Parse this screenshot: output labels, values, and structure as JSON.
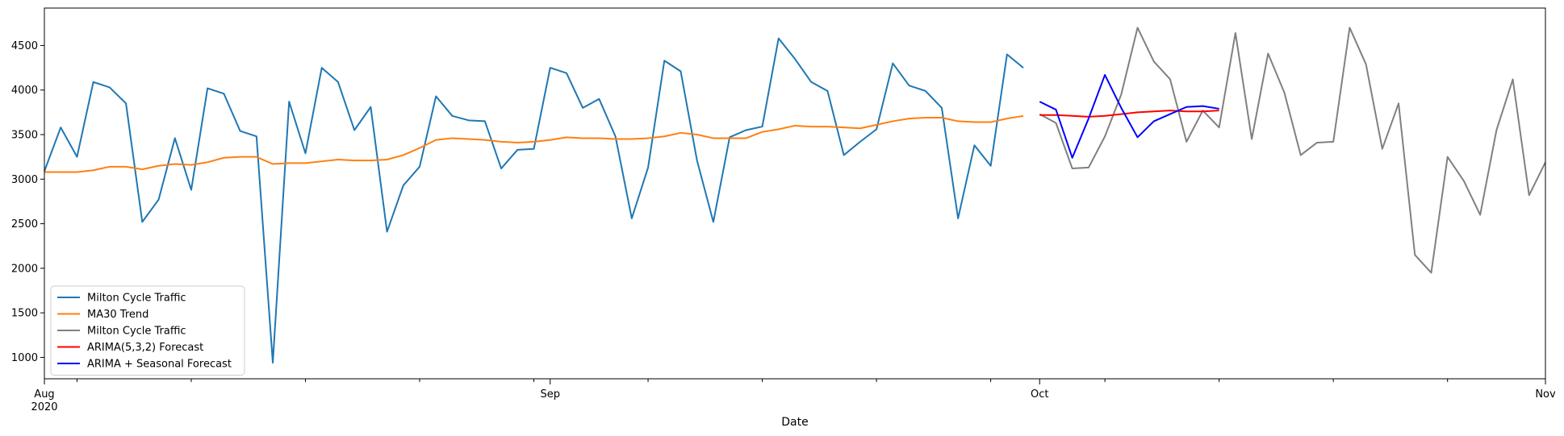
{
  "chart_data": {
    "type": "line",
    "title": "",
    "xlabel": "Date",
    "ylabel": "",
    "xlim": [
      "2020-08-01",
      "2020-11-01"
    ],
    "ylim": [
      760,
      4920
    ],
    "grid": false,
    "legend_position": "lower-left",
    "y_ticks": [
      1000,
      1500,
      2000,
      2500,
      3000,
      3500,
      4000,
      4500
    ],
    "x_major_ticks": [
      {
        "date": "2020-08-01",
        "label": "Aug",
        "sublabel": "2020"
      },
      {
        "date": "2020-09-01",
        "label": "Sep",
        "sublabel": ""
      },
      {
        "date": "2020-10-01",
        "label": "Oct",
        "sublabel": ""
      },
      {
        "date": "2020-11-01",
        "label": "Nov",
        "sublabel": ""
      }
    ],
    "x_minor_ticks": [
      "2020-08-03",
      "2020-08-10",
      "2020-08-17",
      "2020-08-24",
      "2020-08-31",
      "2020-09-07",
      "2020-09-14",
      "2020-09-21",
      "2020-09-28",
      "2020-10-05",
      "2020-10-12",
      "2020-10-19",
      "2020-10-26"
    ],
    "series": [
      {
        "name": "Milton Cycle Traffic",
        "color": "#1f77b4",
        "start": "2020-08-01",
        "values": [
          3090,
          3580,
          3250,
          4090,
          4030,
          3850,
          2520,
          2770,
          3460,
          2880,
          4020,
          3960,
          3540,
          3480,
          940,
          3870,
          3290,
          4250,
          4090,
          3550,
          3810,
          2410,
          2930,
          3140,
          3930,
          3710,
          3660,
          3650,
          3120,
          3330,
          3340,
          4250,
          4190,
          3800,
          3900,
          3480,
          2560,
          3130,
          4330,
          4210,
          3210,
          2520,
          3470,
          3550,
          3590,
          4580,
          4350,
          4090,
          3990,
          3270,
          3420,
          3560,
          4300,
          4050,
          3990,
          3800,
          2560,
          3380,
          3150,
          4400,
          4250
        ]
      },
      {
        "name": "MA30 Trend",
        "color": "#ff7f0e",
        "start": "2020-08-01",
        "values": [
          3080,
          3080,
          3080,
          3100,
          3140,
          3140,
          3110,
          3150,
          3170,
          3160,
          3190,
          3240,
          3250,
          3250,
          3170,
          3180,
          3180,
          3200,
          3220,
          3210,
          3210,
          3220,
          3270,
          3350,
          3440,
          3460,
          3450,
          3440,
          3420,
          3410,
          3420,
          3440,
          3470,
          3460,
          3460,
          3450,
          3450,
          3460,
          3480,
          3520,
          3500,
          3460,
          3460,
          3460,
          3530,
          3560,
          3600,
          3590,
          3590,
          3580,
          3570,
          3610,
          3650,
          3680,
          3690,
          3690,
          3650,
          3640,
          3640,
          3680,
          3710
        ]
      },
      {
        "name": "Milton Cycle Traffic",
        "color": "#808080",
        "start": "2020-10-01",
        "values": [
          3730,
          3630,
          3120,
          3130,
          3480,
          3950,
          4700,
          4320,
          4120,
          3420,
          3770,
          3580,
          4640,
          3450,
          4410,
          3970,
          3270,
          3410,
          3420,
          4700,
          4290,
          3340,
          3850,
          2150,
          1950,
          3250,
          2980,
          2600,
          3550,
          4120,
          2820,
          3190
        ]
      },
      {
        "name": "ARIMA(5,3,2) Forecast",
        "color": "#ff0000",
        "start": "2020-10-01",
        "values": [
          3720,
          3720,
          3710,
          3700,
          3710,
          3730,
          3750,
          3760,
          3770,
          3760,
          3760,
          3770
        ]
      },
      {
        "name": "ARIMA + Seasonal Forecast",
        "color": "#0000ff",
        "start": "2020-10-01",
        "values": [
          3870,
          3780,
          3240,
          3680,
          4170,
          3800,
          3470,
          3650,
          3730,
          3810,
          3820,
          3790
        ]
      }
    ]
  }
}
